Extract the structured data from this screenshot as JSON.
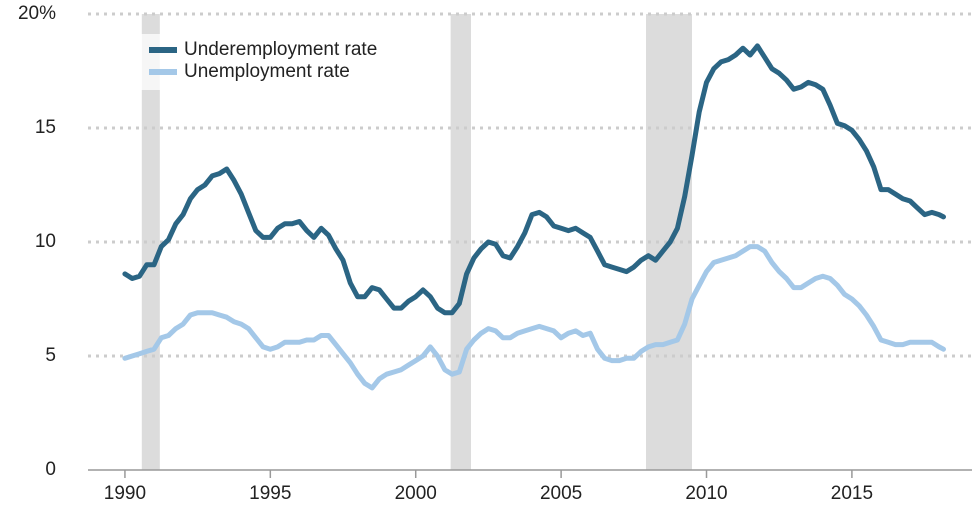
{
  "chart_data": {
    "type": "line",
    "x": [
      1990.0,
      1990.25,
      1990.5,
      1990.75,
      1991.0,
      1991.25,
      1991.5,
      1991.75,
      1992.0,
      1992.25,
      1992.5,
      1992.75,
      1993.0,
      1993.25,
      1993.5,
      1993.75,
      1994.0,
      1994.25,
      1994.5,
      1994.75,
      1995.0,
      1995.25,
      1995.5,
      1995.75,
      1996.0,
      1996.25,
      1996.5,
      1996.75,
      1997.0,
      1997.25,
      1997.5,
      1997.75,
      1998.0,
      1998.25,
      1998.5,
      1998.75,
      1999.0,
      1999.25,
      1999.5,
      1999.75,
      2000.0,
      2000.25,
      2000.5,
      2000.75,
      2001.0,
      2001.25,
      2001.5,
      2001.75,
      2002.0,
      2002.25,
      2002.5,
      2002.75,
      2003.0,
      2003.25,
      2003.5,
      2003.75,
      2004.0,
      2004.25,
      2004.5,
      2004.75,
      2005.0,
      2005.25,
      2005.5,
      2005.75,
      2006.0,
      2006.25,
      2006.5,
      2006.75,
      2007.0,
      2007.25,
      2007.5,
      2007.75,
      2008.0,
      2008.25,
      2008.5,
      2008.75,
      2009.0,
      2009.25,
      2009.5,
      2009.75,
      2010.0,
      2010.25,
      2010.5,
      2010.75,
      2011.0,
      2011.25,
      2011.5,
      2011.75,
      2012.0,
      2012.25,
      2012.5,
      2012.75,
      2013.0,
      2013.25,
      2013.5,
      2013.75,
      2014.0,
      2014.25,
      2014.5,
      2014.75,
      2015.0,
      2015.25,
      2015.5,
      2015.75,
      2016.0,
      2016.25,
      2016.5,
      2016.75,
      2017.0,
      2017.25,
      2017.5,
      2017.75,
      2018.0,
      2018.15
    ],
    "series": [
      {
        "name": "Underemployment rate",
        "color": "#2b6584",
        "values": [
          8.6,
          8.4,
          8.5,
          9.0,
          9.0,
          9.8,
          10.1,
          10.8,
          11.2,
          11.9,
          12.3,
          12.5,
          12.9,
          13.0,
          13.2,
          12.7,
          12.1,
          11.3,
          10.5,
          10.2,
          10.2,
          10.6,
          10.8,
          10.8,
          10.9,
          10.5,
          10.2,
          10.6,
          10.3,
          9.7,
          9.2,
          8.2,
          7.6,
          7.6,
          8.0,
          7.9,
          7.5,
          7.1,
          7.1,
          7.4,
          7.6,
          7.9,
          7.6,
          7.1,
          6.9,
          6.9,
          7.3,
          8.6,
          9.3,
          9.7,
          10.0,
          9.9,
          9.4,
          9.3,
          9.8,
          10.4,
          11.2,
          11.3,
          11.1,
          10.7,
          10.6,
          10.5,
          10.6,
          10.4,
          10.2,
          9.6,
          9.0,
          8.9,
          8.8,
          8.7,
          8.9,
          9.2,
          9.4,
          9.2,
          9.6,
          10.0,
          10.6,
          12.0,
          13.8,
          15.7,
          17.0,
          17.6,
          17.9,
          18.0,
          18.2,
          18.5,
          18.2,
          18.6,
          18.1,
          17.6,
          17.4,
          17.1,
          16.7,
          16.8,
          17.0,
          16.9,
          16.7,
          16.0,
          15.2,
          15.1,
          14.9,
          14.5,
          14.0,
          13.3,
          12.3,
          12.3,
          12.1,
          11.9,
          11.8,
          11.5,
          11.2,
          11.3,
          11.2,
          11.1
        ]
      },
      {
        "name": "Unemployment rate",
        "color": "#a4c8e8",
        "values": [
          4.9,
          5.0,
          5.1,
          5.2,
          5.3,
          5.8,
          5.9,
          6.2,
          6.4,
          6.8,
          6.9,
          6.9,
          6.9,
          6.8,
          6.7,
          6.5,
          6.4,
          6.2,
          5.8,
          5.4,
          5.3,
          5.4,
          5.6,
          5.6,
          5.6,
          5.7,
          5.7,
          5.9,
          5.9,
          5.5,
          5.1,
          4.7,
          4.2,
          3.8,
          3.6,
          4.0,
          4.2,
          4.3,
          4.4,
          4.6,
          4.8,
          5.0,
          5.4,
          5.0,
          4.4,
          4.2,
          4.3,
          5.3,
          5.7,
          6.0,
          6.2,
          6.1,
          5.8,
          5.8,
          6.0,
          6.1,
          6.2,
          6.3,
          6.2,
          6.1,
          5.8,
          6.0,
          6.1,
          5.9,
          6.0,
          5.3,
          4.9,
          4.8,
          4.8,
          4.9,
          4.9,
          5.2,
          5.4,
          5.5,
          5.5,
          5.6,
          5.7,
          6.4,
          7.5,
          8.1,
          8.7,
          9.1,
          9.2,
          9.3,
          9.4,
          9.6,
          9.8,
          9.8,
          9.6,
          9.1,
          8.7,
          8.4,
          8.0,
          8.0,
          8.2,
          8.4,
          8.5,
          8.4,
          8.1,
          7.7,
          7.5,
          7.2,
          6.8,
          6.3,
          5.7,
          5.6,
          5.5,
          5.5,
          5.6,
          5.6,
          5.6,
          5.6,
          5.4,
          5.3
        ]
      }
    ],
    "shaded_regions": [
      [
        1990.58,
        1991.2
      ],
      [
        2001.2,
        2001.9
      ],
      [
        2007.92,
        2009.5
      ]
    ],
    "shade_color": "#dcdcdc",
    "xlim": [
      1988.73,
      2019.13
    ],
    "xticks": [
      1990,
      1995,
      2000,
      2005,
      2010,
      2015
    ],
    "ylim": [
      0,
      20
    ],
    "yticks": [
      0,
      5,
      10,
      15,
      {
        "value": 20,
        "label": "20%"
      }
    ],
    "grid": true,
    "legend": "upper left"
  }
}
